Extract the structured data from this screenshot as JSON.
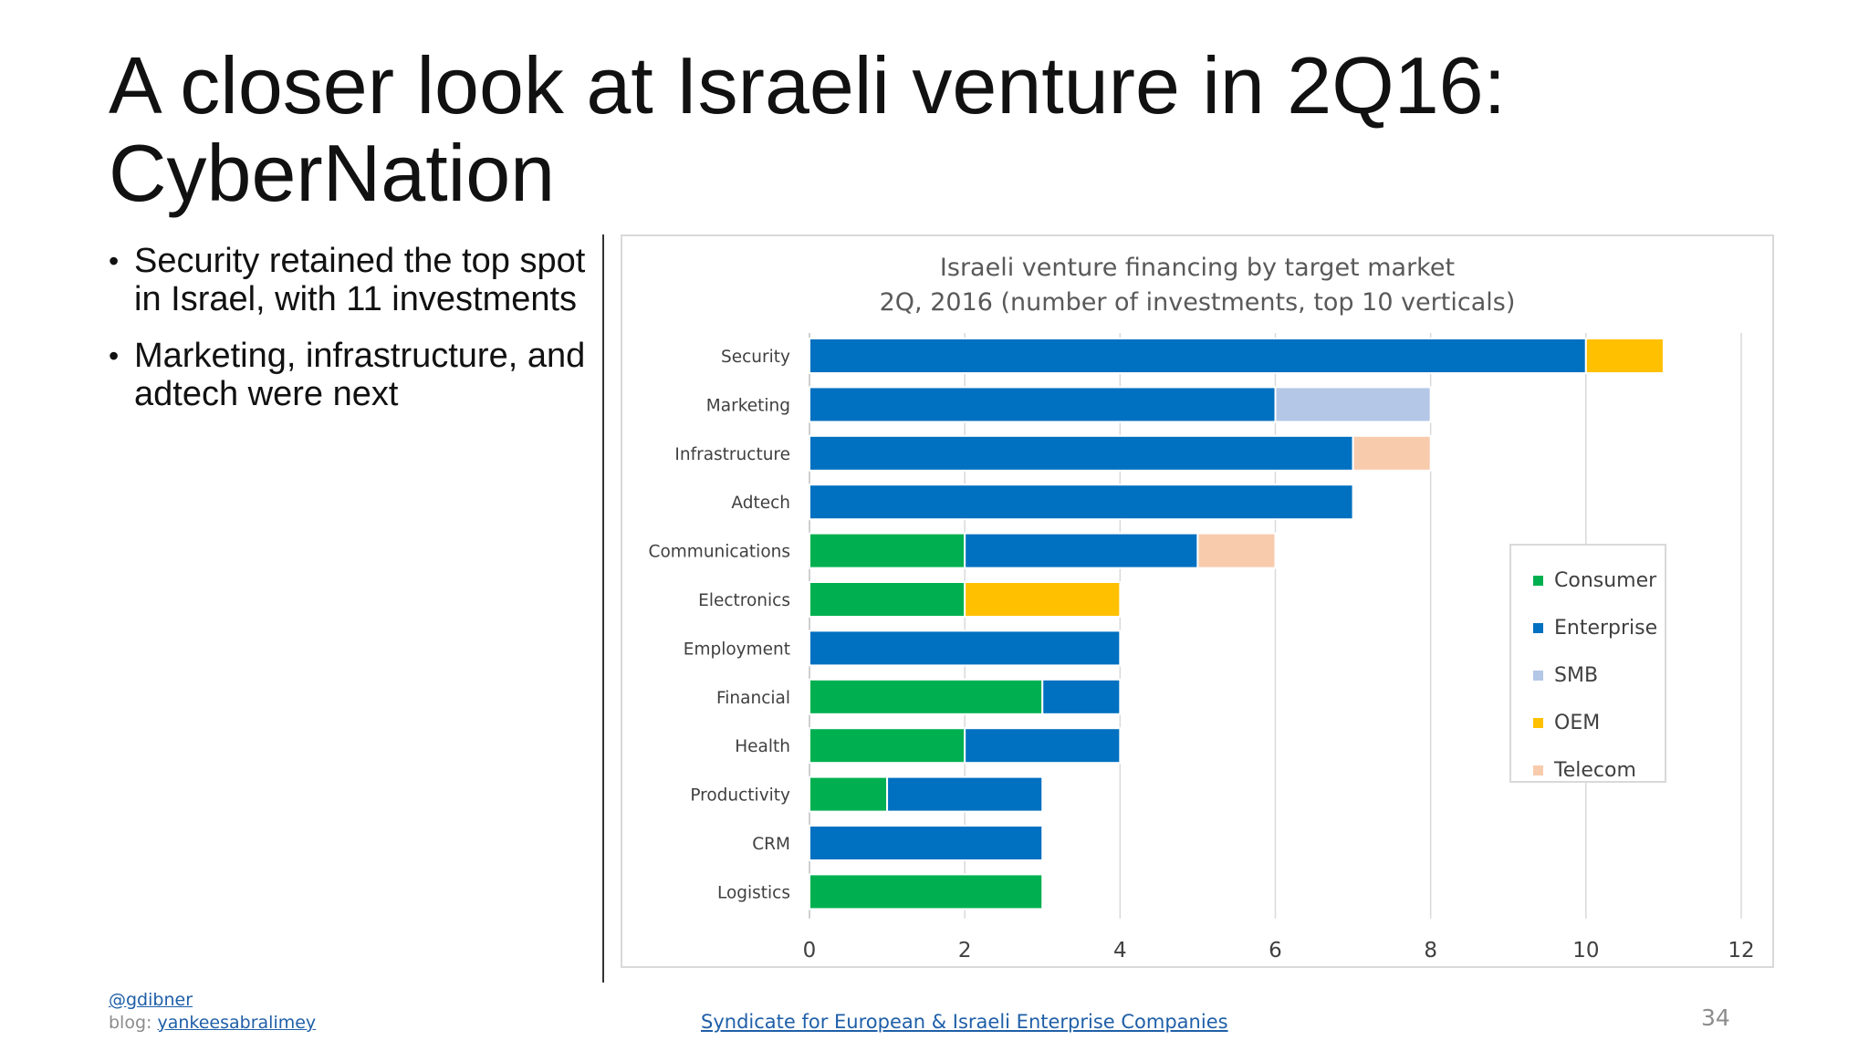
{
  "slide": {
    "title_line1": "A closer look at Israeli venture in 2Q16:",
    "title_line2": "CyberNation",
    "bullets": [
      "Security retained the top spot in Israel, with 11 investments",
      "Marketing, infrastructure, and adtech were next"
    ],
    "footer_handle": "@gdibner",
    "footer_blog_label": "blog:",
    "footer_blog_link": "yankeesabralimey",
    "footer_source": "Syndicate for European & Israeli Enterprise Companies",
    "page_number": "34"
  },
  "chart_data": {
    "type": "bar",
    "orientation": "horizontal",
    "stacked": true,
    "title": "Israeli venture financing by target market",
    "subtitle": "2Q, 2016 (number of investments, top 10 verticals)",
    "xlabel": "",
    "ylabel": "",
    "xlim": [
      0,
      12
    ],
    "x_ticks": [
      0,
      2,
      4,
      6,
      8,
      10,
      12
    ],
    "grid": "vertical",
    "legend_position": "right",
    "categories": [
      "Security",
      "Marketing",
      "Infrastructure",
      "Adtech",
      "Communications",
      "Electronics",
      "Employment",
      "Financial",
      "Health",
      "Productivity",
      "CRM",
      "Logistics"
    ],
    "series": [
      {
        "name": "Consumer",
        "color": "#00b050",
        "values": [
          0,
          0,
          0,
          0,
          2,
          2,
          0,
          3,
          2,
          1,
          0,
          3
        ]
      },
      {
        "name": "Enterprise",
        "color": "#0070c0",
        "values": [
          10,
          6,
          7,
          7,
          3,
          0,
          4,
          1,
          2,
          2,
          3,
          0
        ]
      },
      {
        "name": "SMB",
        "color": "#b4c7e7",
        "values": [
          0,
          2,
          0,
          0,
          0,
          0,
          0,
          0,
          0,
          0,
          0,
          0
        ]
      },
      {
        "name": "OEM",
        "color": "#ffc000",
        "values": [
          1,
          0,
          0,
          0,
          0,
          2,
          0,
          0,
          0,
          0,
          0,
          0
        ]
      },
      {
        "name": "Telecom",
        "color": "#f8cbad",
        "values": [
          0,
          0,
          1,
          0,
          1,
          0,
          0,
          0,
          0,
          0,
          0,
          0
        ]
      }
    ]
  }
}
